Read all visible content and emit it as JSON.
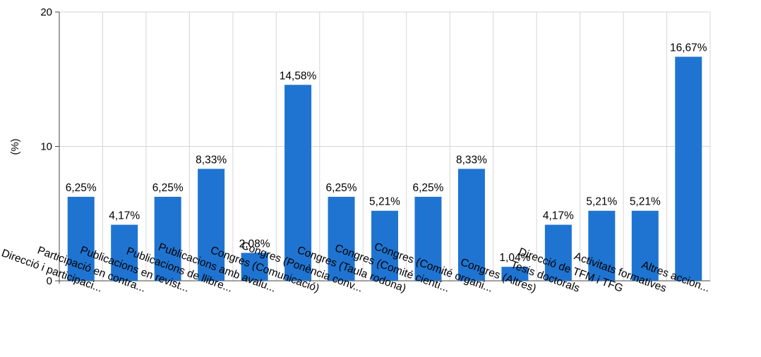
{
  "chart_data": {
    "type": "bar",
    "ylabel": "(%)",
    "ylim": [
      0,
      20
    ],
    "yticks": [
      0,
      10,
      20
    ],
    "grid": true,
    "bar_color": "#1f74d1",
    "categories": [
      "Direcció i participaci...",
      "Participació en contra...",
      "Publicacions en revist...",
      "Publicacions de llibre...",
      "Publicacions amb avalu...",
      "Congres (Comunicació)",
      "Congres (Ponència conv...",
      "Congres (Taula rodona)",
      "Congres (Comité cientí...",
      "Congres (Comité organi...",
      "Congres (Altres)",
      "Tesis doctorals",
      "Direcció de TFM i TFG",
      "Activitats formatives",
      "Altres accion..."
    ],
    "values": [
      6.25,
      4.17,
      6.25,
      8.33,
      2.08,
      14.58,
      6.25,
      5.21,
      6.25,
      8.33,
      1.04,
      4.17,
      5.21,
      5.21,
      16.67
    ],
    "data_labels": [
      "6,25%",
      "4,17%",
      "6,25%",
      "8,33%",
      "2,08%",
      "14,58%",
      "6,25%",
      "5,21%",
      "6,25%",
      "8,33%",
      "1,04%",
      "4,17%",
      "5,21%",
      "5,21%",
      "16,67%"
    ]
  }
}
